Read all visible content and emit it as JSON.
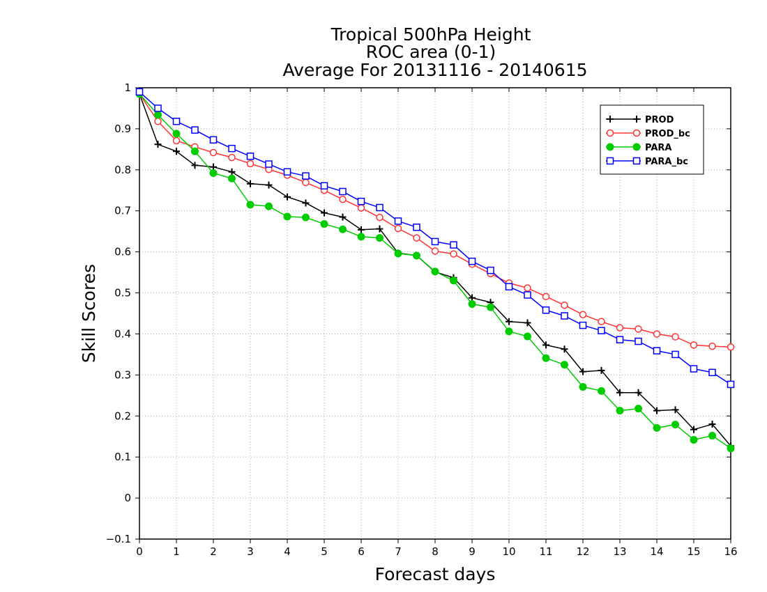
{
  "chart_data": {
    "type": "line",
    "title": [
      "Tropical 500hPa Height",
      "ROC area (0-1)",
      "Average For 20131116 - 20140615"
    ],
    "xlabel": "Forecast days",
    "ylabel": "Skill Scores",
    "xlim": [
      0,
      16
    ],
    "ylim": [
      -0.1,
      1
    ],
    "xticks": [
      0,
      1,
      2,
      3,
      4,
      5,
      6,
      7,
      8,
      9,
      10,
      11,
      12,
      13,
      14,
      15,
      16
    ],
    "yticks": [
      -0.1,
      0,
      0.1,
      0.2,
      0.3,
      0.4,
      0.5,
      0.6,
      0.7,
      0.8,
      0.9,
      1
    ],
    "grid": true,
    "legend_position": "top-right",
    "x": [
      0,
      0.5,
      1,
      1.5,
      2,
      2.5,
      3,
      3.5,
      4,
      4.5,
      5,
      5.5,
      6,
      6.5,
      7,
      7.5,
      8,
      8.5,
      9,
      9.5,
      10,
      10.5,
      11,
      11.5,
      12,
      12.5,
      13,
      13.5,
      14,
      14.5,
      15,
      15.5,
      16
    ],
    "series": [
      {
        "name": "PROD",
        "color": "#000000",
        "marker": "plus",
        "values": [
          0.985,
          0.862,
          0.845,
          0.811,
          0.807,
          0.795,
          0.766,
          0.763,
          0.734,
          0.719,
          0.695,
          0.685,
          0.654,
          0.656,
          0.597,
          0.591,
          0.551,
          0.537,
          0.488,
          0.477,
          0.43,
          0.427,
          0.373,
          0.363,
          0.308,
          0.311,
          0.257,
          0.257,
          0.213,
          0.215,
          0.167,
          0.18,
          0.127
        ]
      },
      {
        "name": "PROD_bc",
        "color": "#ff3333",
        "marker": "open-circle",
        "values": [
          0.985,
          0.918,
          0.871,
          0.856,
          0.842,
          0.83,
          0.815,
          0.801,
          0.787,
          0.769,
          0.75,
          0.728,
          0.707,
          0.684,
          0.657,
          0.634,
          0.602,
          0.595,
          0.57,
          0.547,
          0.524,
          0.512,
          0.491,
          0.47,
          0.447,
          0.43,
          0.415,
          0.412,
          0.4,
          0.393,
          0.373,
          0.37,
          0.368
        ]
      },
      {
        "name": "PARA",
        "color": "#00cc00",
        "marker": "filled-circle",
        "values": [
          0.985,
          0.934,
          0.888,
          0.845,
          0.792,
          0.779,
          0.715,
          0.711,
          0.686,
          0.684,
          0.668,
          0.655,
          0.637,
          0.634,
          0.596,
          0.591,
          0.552,
          0.53,
          0.473,
          0.465,
          0.406,
          0.394,
          0.341,
          0.325,
          0.271,
          0.261,
          0.213,
          0.218,
          0.171,
          0.179,
          0.142,
          0.152,
          0.121
        ]
      },
      {
        "name": "PARA_bc",
        "color": "#0000ff",
        "marker": "open-square",
        "values": [
          0.99,
          0.95,
          0.918,
          0.897,
          0.873,
          0.852,
          0.833,
          0.814,
          0.795,
          0.785,
          0.761,
          0.747,
          0.723,
          0.708,
          0.675,
          0.66,
          0.625,
          0.617,
          0.577,
          0.555,
          0.515,
          0.495,
          0.458,
          0.444,
          0.421,
          0.408,
          0.386,
          0.382,
          0.359,
          0.35,
          0.315,
          0.306,
          0.277
        ]
      }
    ]
  }
}
